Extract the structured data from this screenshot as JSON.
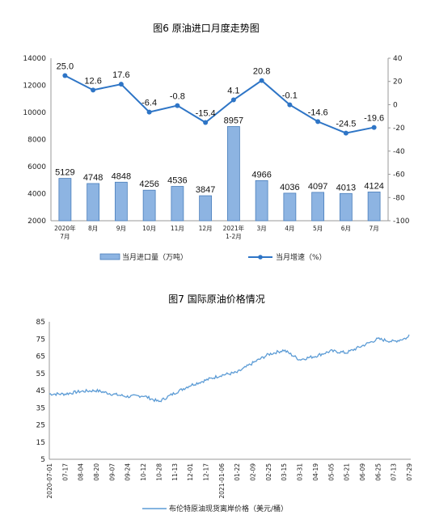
{
  "charts": [
    {
      "title": "图6 原油进口月度走势图",
      "chart_data": {
        "type": "bar",
        "categories": [
          "2020年\n7月",
          "8月",
          "9月",
          "10月",
          "11月",
          "12月",
          "2021年\n1-2月",
          "3月",
          "4月",
          "5月",
          "6月",
          "7月"
        ],
        "series": [
          {
            "name": "当月进口量（万吨）",
            "type": "bar",
            "axis": "left",
            "values": [
              5129,
              4748,
              4848,
              4256,
              4536,
              3847,
              8957,
              4966,
              4036,
              4097,
              4013,
              4124
            ]
          },
          {
            "name": "当月增速（%）",
            "type": "line",
            "axis": "right",
            "values": [
              25.0,
              12.6,
              17.6,
              -6.4,
              -0.8,
              -15.4,
              4.1,
              20.8,
              -0.1,
              -14.6,
              -24.5,
              -19.6
            ]
          }
        ],
        "ylim_left": [
          2000,
          14000
        ],
        "yticks_left": [
          2000,
          4000,
          6000,
          8000,
          10000,
          12000,
          14000
        ],
        "ylim_right": [
          -100,
          40
        ],
        "yticks_right": [
          -100,
          -80,
          -60,
          -40,
          -20,
          0,
          20,
          40
        ],
        "legend": "bottom",
        "colors": {
          "bar": "#8db4e2",
          "bar_edge": "#4a7ebb",
          "line": "#2e75c6"
        },
        "line_labels": [
          "25.0",
          "12.6",
          "17.6",
          "-6.4",
          "-0.8",
          "-15.4",
          "4.1",
          "20.8",
          "-0.1",
          "-14.6",
          "-24.5",
          "-19.6"
        ],
        "bar_labels": [
          "5129",
          "4748",
          "4848",
          "4256",
          "4536",
          "3847",
          "8957",
          "4966",
          "4036",
          "4097",
          "4013",
          "4124"
        ]
      }
    },
    {
      "title": "图7 国际原油价格情况",
      "chart_data": {
        "type": "line",
        "series": [
          {
            "name": "布伦特原油现货离岸价格（美元/桶）",
            "x": [
              "2020-07-01",
              "2020-07-17",
              "2020-08-04",
              "2020-08-20",
              "2020-09-07",
              "2020-09-24",
              "2020-10-12",
              "2020-10-28",
              "2020-11-13",
              "2020-12-01",
              "2020-12-17",
              "2021-01-06",
              "2021-01-22",
              "2021-02-09",
              "2021-02-25",
              "2021-03-15",
              "2021-03-31",
              "2021-04-19",
              "2021-05-05",
              "2021-05-21",
              "2021-06-09",
              "2021-06-25",
              "2021-07-13",
              "2021-07-29"
            ],
            "values": [
              43,
              43,
              44.5,
              45,
              43,
              41.5,
              42,
              38.5,
              43.5,
              48,
              51,
              54,
              55.5,
              61,
              66,
              68.5,
              63,
              65,
              68,
              67,
              71,
              75,
              73.5,
              76
            ]
          }
        ],
        "ylim": [
          5,
          85
        ],
        "yticks": [
          5,
          15,
          25,
          35,
          45,
          55,
          65,
          75,
          85
        ],
        "xticks": [
          "2020-07-01",
          "07-17",
          "08-04",
          "08-20",
          "09-07",
          "09-24",
          "10-12",
          "10-28",
          "11-13",
          "12-01",
          "12-17",
          "2021-01-06",
          "01-22",
          "02-09",
          "02-25",
          "03-15",
          "03-31",
          "04-19",
          "05-05",
          "05-21",
          "06-09",
          "06-25",
          "07-13",
          "07-29"
        ],
        "grid": false,
        "legend": "bottom",
        "colors": {
          "line": "#5b9bd5"
        }
      }
    }
  ]
}
